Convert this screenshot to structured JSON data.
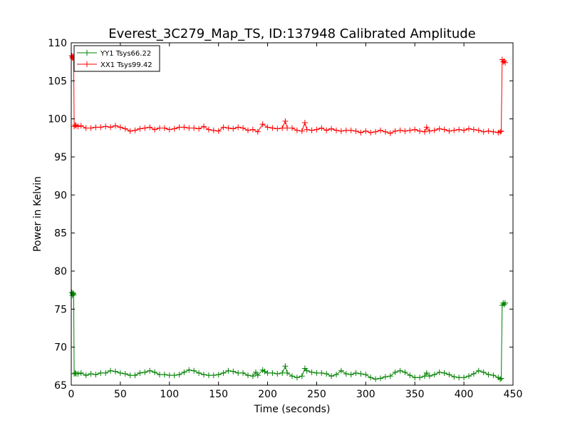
{
  "chart_data": {
    "type": "line",
    "title": "Everest_3C279_Map_TS, ID:137948 Calibrated Amplitude",
    "xlabel": "Time (seconds)",
    "ylabel": "Power in Kelvin",
    "xlim": [
      0,
      450
    ],
    "ylim": [
      65,
      110
    ],
    "xticks": [
      0,
      50,
      100,
      150,
      200,
      250,
      300,
      350,
      400,
      450
    ],
    "yticks": [
      65,
      70,
      75,
      80,
      85,
      90,
      95,
      100,
      105,
      110
    ],
    "grid": false,
    "legend_position": "top-left",
    "marker": "plus",
    "series": [
      {
        "name": "YY1 Tsys66.22",
        "color": "#008000",
        "x": [
          0.5,
          1,
          1.5,
          2,
          2.5,
          3,
          4,
          5,
          7,
          10,
          15,
          20,
          25,
          30,
          35,
          40,
          45,
          50,
          55,
          60,
          65,
          70,
          75,
          80,
          85,
          90,
          95,
          100,
          105,
          110,
          115,
          120,
          125,
          130,
          135,
          140,
          145,
          150,
          155,
          160,
          165,
          170,
          175,
          180,
          185,
          188,
          190,
          195,
          197,
          200,
          205,
          210,
          215,
          218,
          220,
          225,
          230,
          235,
          238,
          240,
          245,
          250,
          255,
          260,
          265,
          270,
          275,
          280,
          285,
          290,
          295,
          300,
          305,
          310,
          315,
          320,
          325,
          330,
          335,
          340,
          345,
          350,
          355,
          360,
          362,
          365,
          370,
          375,
          380,
          385,
          390,
          395,
          400,
          405,
          410,
          415,
          420,
          425,
          430,
          435,
          437,
          438,
          439,
          440,
          441,
          442
        ],
        "values": [
          77.2,
          76.8,
          77.0,
          77.1,
          76.9,
          66.5,
          66.6,
          66.5,
          66.5,
          66.6,
          66.3,
          66.5,
          66.4,
          66.6,
          66.6,
          66.9,
          66.8,
          66.6,
          66.5,
          66.3,
          66.3,
          66.6,
          66.7,
          66.9,
          66.7,
          66.4,
          66.4,
          66.3,
          66.3,
          66.4,
          66.7,
          67.0,
          66.9,
          66.6,
          66.4,
          66.3,
          66.3,
          66.4,
          66.6,
          66.9,
          66.8,
          66.6,
          66.6,
          66.3,
          66.2,
          66.7,
          66.3,
          67.0,
          66.8,
          66.6,
          66.6,
          66.5,
          66.6,
          67.5,
          66.6,
          66.2,
          66.0,
          66.2,
          67.2,
          66.9,
          66.7,
          66.6,
          66.6,
          66.5,
          66.2,
          66.4,
          66.9,
          66.5,
          66.4,
          66.6,
          66.5,
          66.4,
          66.0,
          65.8,
          65.9,
          66.1,
          66.2,
          66.7,
          66.9,
          66.7,
          66.3,
          66.0,
          66.0,
          66.2,
          66.6,
          66.2,
          66.4,
          66.7,
          66.6,
          66.4,
          66.1,
          66.0,
          66.0,
          66.2,
          66.5,
          66.9,
          66.7,
          66.4,
          66.3,
          66.0,
          65.8,
          65.9,
          75.5,
          75.8,
          75.6,
          75.8
        ]
      },
      {
        "name": "XX1 Tsys99.42",
        "color": "#ff0000",
        "x": [
          0.5,
          1,
          1.5,
          2,
          2.5,
          3,
          4,
          5,
          7,
          10,
          15,
          20,
          25,
          30,
          35,
          40,
          45,
          50,
          55,
          60,
          65,
          70,
          75,
          80,
          85,
          90,
          95,
          100,
          105,
          110,
          115,
          120,
          125,
          130,
          135,
          140,
          145,
          150,
          155,
          160,
          165,
          170,
          175,
          180,
          185,
          190,
          195,
          200,
          205,
          210,
          215,
          218,
          220,
          225,
          230,
          235,
          238,
          240,
          245,
          250,
          255,
          260,
          265,
          270,
          275,
          280,
          285,
          290,
          295,
          300,
          305,
          310,
          315,
          320,
          325,
          330,
          335,
          340,
          345,
          350,
          355,
          360,
          362,
          365,
          370,
          375,
          380,
          385,
          390,
          395,
          400,
          405,
          410,
          415,
          420,
          425,
          430,
          435,
          437,
          438,
          439,
          440,
          441,
          442
        ],
        "values": [
          108.3,
          108.0,
          108.2,
          108.1,
          107.9,
          99.0,
          99.2,
          99.1,
          99.0,
          99.1,
          98.8,
          98.8,
          98.9,
          98.9,
          99.0,
          98.9,
          99.1,
          98.9,
          98.7,
          98.4,
          98.5,
          98.7,
          98.8,
          98.9,
          98.6,
          98.8,
          98.8,
          98.6,
          98.7,
          98.9,
          98.9,
          98.8,
          98.8,
          98.7,
          99.0,
          98.6,
          98.5,
          98.4,
          98.9,
          98.8,
          98.7,
          98.9,
          98.8,
          98.5,
          98.6,
          98.3,
          99.3,
          98.9,
          98.8,
          98.7,
          98.8,
          99.7,
          98.8,
          98.8,
          98.5,
          98.4,
          99.5,
          98.6,
          98.5,
          98.6,
          98.8,
          98.5,
          98.7,
          98.5,
          98.4,
          98.5,
          98.5,
          98.4,
          98.2,
          98.4,
          98.2,
          98.3,
          98.5,
          98.3,
          98.1,
          98.4,
          98.5,
          98.4,
          98.5,
          98.6,
          98.4,
          98.3,
          98.9,
          98.4,
          98.5,
          98.7,
          98.6,
          98.4,
          98.5,
          98.6,
          98.5,
          98.7,
          98.6,
          98.5,
          98.3,
          98.4,
          98.3,
          98.2,
          98.3,
          98.4,
          107.8,
          107.5,
          107.6,
          107.4
        ]
      }
    ]
  }
}
